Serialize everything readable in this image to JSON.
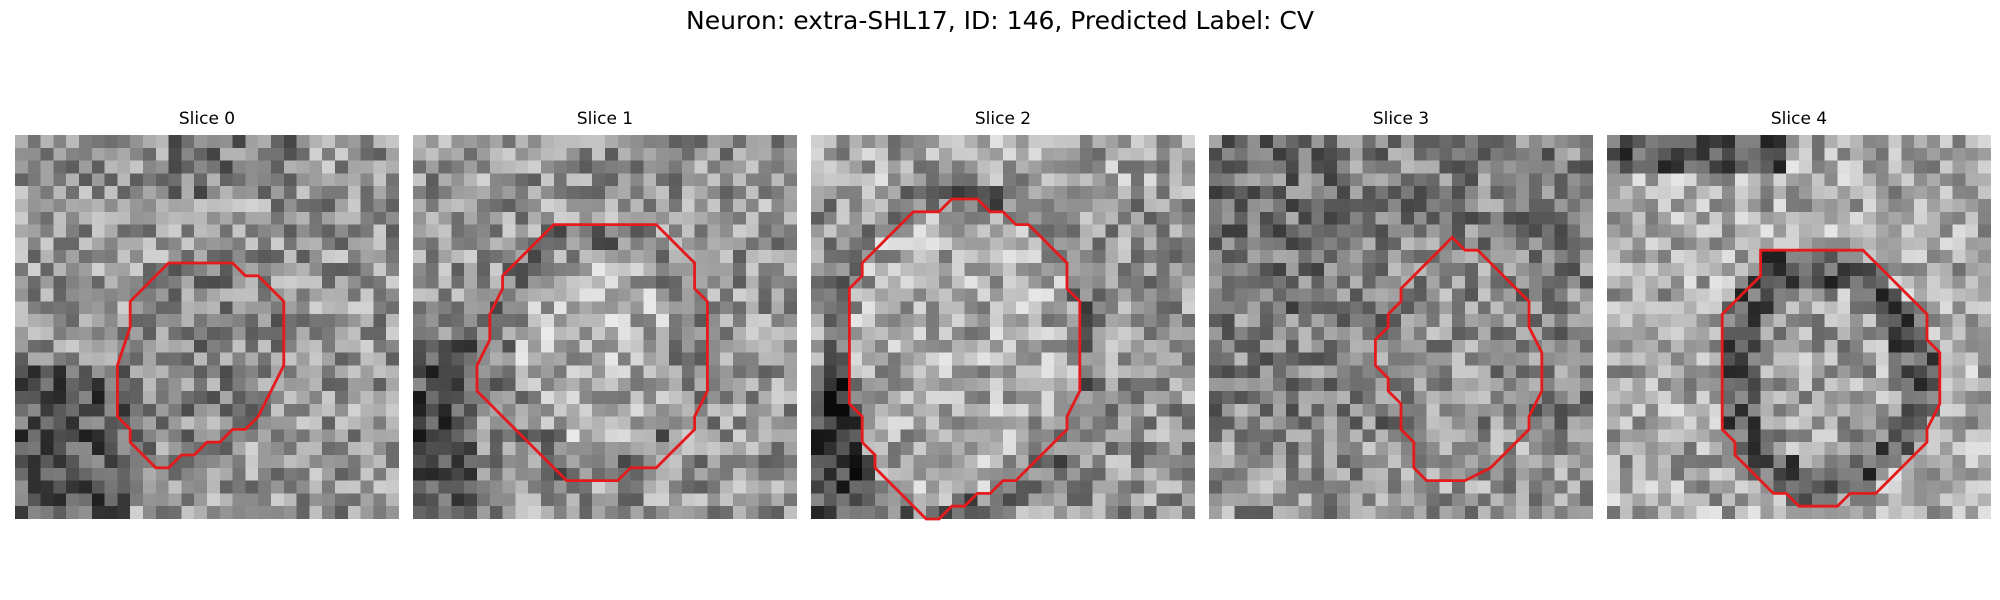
{
  "figure": {
    "title": "Neuron: extra-SHL17, ID: 146, Predicted Label: CV",
    "contour_color": "#e41a1c",
    "colormap": "gray",
    "panels": [
      {
        "title": "Slice 0",
        "brightness": "mixed, dark lower-left region",
        "contour_points": [
          [
            12,
            10
          ],
          [
            17,
            10
          ],
          [
            18,
            11
          ],
          [
            19,
            11
          ],
          [
            20,
            12
          ],
          [
            21,
            13
          ],
          [
            21,
            14
          ],
          [
            21,
            18
          ],
          [
            20,
            20
          ],
          [
            19,
            22
          ],
          [
            18,
            23
          ],
          [
            17,
            23
          ],
          [
            16,
            24
          ],
          [
            15,
            24
          ],
          [
            14,
            25
          ],
          [
            13,
            25
          ],
          [
            12,
            26
          ],
          [
            11,
            26
          ],
          [
            10,
            25
          ],
          [
            9,
            24
          ],
          [
            9,
            23
          ],
          [
            8,
            22
          ],
          [
            8,
            20
          ],
          [
            8,
            18
          ],
          [
            9,
            15
          ],
          [
            9,
            13
          ],
          [
            10,
            12
          ],
          [
            11,
            11
          ]
        ]
      },
      {
        "title": "Slice 1",
        "brightness": "bright interior, darker rim",
        "contour_points": [
          [
            11,
            7
          ],
          [
            19,
            7
          ],
          [
            20,
            8
          ],
          [
            21,
            9
          ],
          [
            22,
            10
          ],
          [
            22,
            12
          ],
          [
            23,
            13
          ],
          [
            23,
            20
          ],
          [
            22,
            22
          ],
          [
            22,
            23
          ],
          [
            21,
            24
          ],
          [
            20,
            25
          ],
          [
            19,
            26
          ],
          [
            17,
            26
          ],
          [
            16,
            27
          ],
          [
            12,
            27
          ],
          [
            11,
            26
          ],
          [
            10,
            25
          ],
          [
            9,
            24
          ],
          [
            8,
            23
          ],
          [
            7,
            22
          ],
          [
            6,
            21
          ],
          [
            5,
            20
          ],
          [
            5,
            18
          ],
          [
            6,
            16
          ],
          [
            6,
            14
          ],
          [
            7,
            12
          ],
          [
            7,
            11
          ],
          [
            8,
            10
          ],
          [
            9,
            9
          ],
          [
            10,
            8
          ]
        ]
      },
      {
        "title": "Slice 2",
        "brightness": "large bright round cell",
        "contour_points": [
          [
            12,
            5
          ],
          [
            13,
            5
          ],
          [
            14,
            6
          ],
          [
            15,
            6
          ],
          [
            16,
            7
          ],
          [
            17,
            7
          ],
          [
            18,
            8
          ],
          [
            19,
            9
          ],
          [
            20,
            10
          ],
          [
            20,
            12
          ],
          [
            21,
            13
          ],
          [
            21,
            20
          ],
          [
            20,
            22
          ],
          [
            20,
            23
          ],
          [
            19,
            24
          ],
          [
            18,
            25
          ],
          [
            17,
            26
          ],
          [
            16,
            27
          ],
          [
            15,
            27
          ],
          [
            14,
            28
          ],
          [
            13,
            28
          ],
          [
            12,
            29
          ],
          [
            11,
            29
          ],
          [
            10,
            30
          ],
          [
            9,
            30
          ],
          [
            8,
            29
          ],
          [
            7,
            28
          ],
          [
            6,
            27
          ],
          [
            5,
            26
          ],
          [
            5,
            25
          ],
          [
            4,
            24
          ],
          [
            4,
            22
          ],
          [
            3,
            21
          ],
          [
            3,
            12
          ],
          [
            4,
            11
          ],
          [
            4,
            10
          ],
          [
            5,
            9
          ],
          [
            6,
            8
          ],
          [
            7,
            7
          ],
          [
            8,
            6
          ],
          [
            10,
            6
          ],
          [
            11,
            5
          ]
        ]
      },
      {
        "title": "Slice 3",
        "brightness": "noisy texture, smaller contour on right",
        "contour_points": [
          [
            19,
            8
          ],
          [
            20,
            9
          ],
          [
            21,
            9
          ],
          [
            22,
            10
          ],
          [
            23,
            11
          ],
          [
            24,
            12
          ],
          [
            25,
            13
          ],
          [
            25,
            15
          ],
          [
            26,
            17
          ],
          [
            26,
            20
          ],
          [
            25,
            22
          ],
          [
            25,
            23
          ],
          [
            24,
            24
          ],
          [
            23,
            25
          ],
          [
            22,
            26
          ],
          [
            20,
            27
          ],
          [
            17,
            27
          ],
          [
            16,
            26
          ],
          [
            16,
            24
          ],
          [
            15,
            23
          ],
          [
            15,
            21
          ],
          [
            14,
            20
          ],
          [
            14,
            19
          ],
          [
            13,
            18
          ],
          [
            13,
            16
          ],
          [
            14,
            15
          ],
          [
            14,
            14
          ],
          [
            15,
            13
          ],
          [
            15,
            12
          ],
          [
            16,
            11
          ],
          [
            17,
            10
          ],
          [
            18,
            9
          ]
        ]
      },
      {
        "title": "Slice 4",
        "brightness": "dark ring around cell with bright center",
        "contour_points": [
          [
            12,
            9
          ],
          [
            20,
            9
          ],
          [
            21,
            10
          ],
          [
            22,
            11
          ],
          [
            23,
            12
          ],
          [
            24,
            13
          ],
          [
            25,
            14
          ],
          [
            25,
            16
          ],
          [
            26,
            17
          ],
          [
            26,
            21
          ],
          [
            25,
            23
          ],
          [
            25,
            24
          ],
          [
            24,
            25
          ],
          [
            23,
            26
          ],
          [
            22,
            27
          ],
          [
            21,
            28
          ],
          [
            19,
            28
          ],
          [
            18,
            29
          ],
          [
            15,
            29
          ],
          [
            14,
            28
          ],
          [
            13,
            28
          ],
          [
            12,
            27
          ],
          [
            11,
            26
          ],
          [
            10,
            25
          ],
          [
            10,
            24
          ],
          [
            9,
            23
          ],
          [
            9,
            14
          ],
          [
            10,
            13
          ],
          [
            11,
            12
          ],
          [
            12,
            11
          ]
        ]
      }
    ]
  }
}
